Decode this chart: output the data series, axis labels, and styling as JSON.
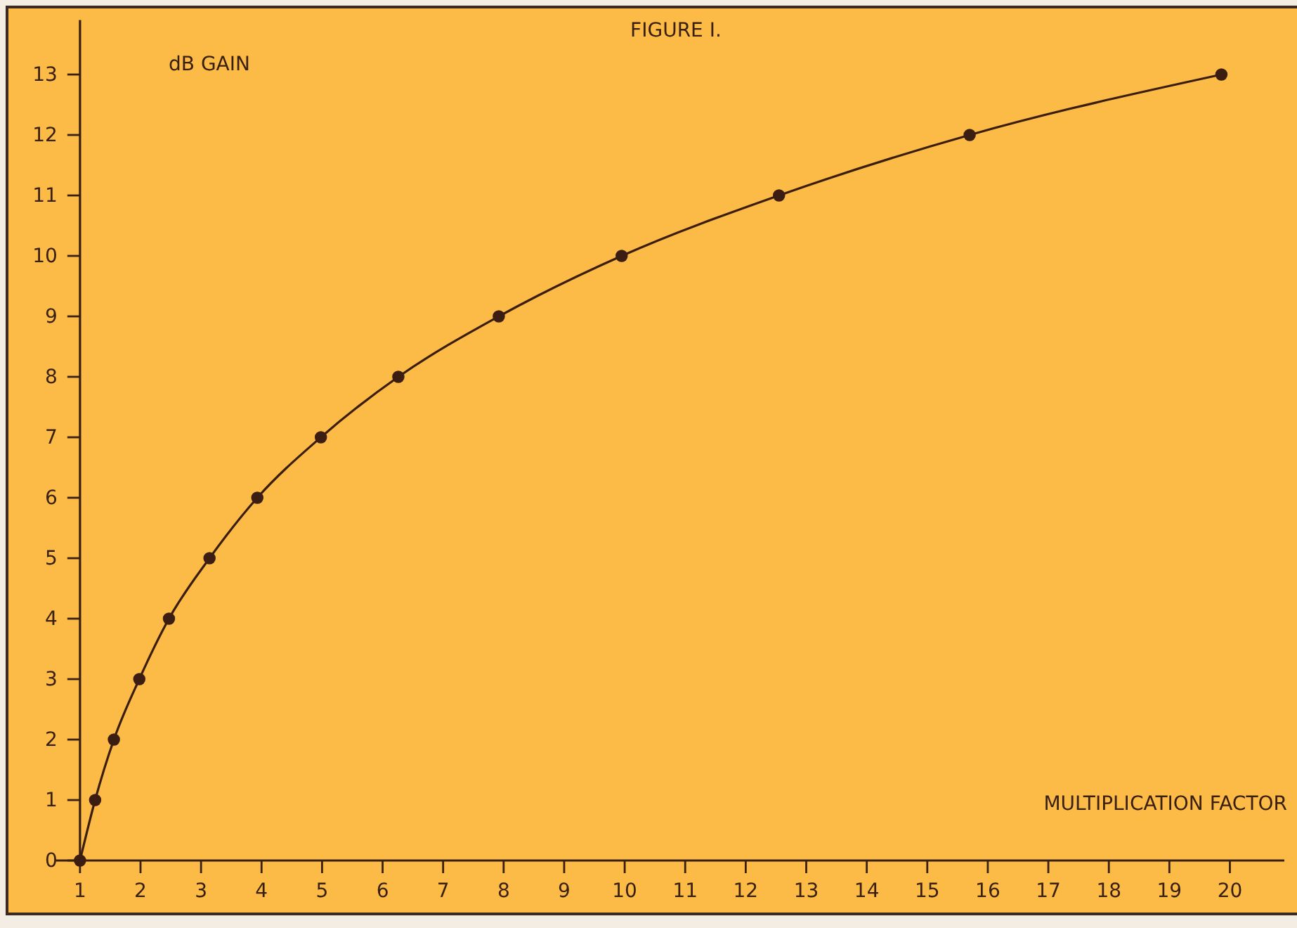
{
  "chart_data": {
    "type": "line",
    "title": "FIGURE I.",
    "xlabel": "MULTIPLICATION FACTOR",
    "ylabel": "dB GAIN",
    "x": [
      1,
      1.25,
      1.56,
      1.98,
      2.47,
      3.14,
      3.93,
      4.98,
      6.26,
      7.92,
      9.95,
      12.55,
      15.7,
      19.86
    ],
    "series": [
      {
        "color": "#3b1d12",
        "values": [
          0,
          1,
          2,
          3,
          4,
          5,
          6,
          7,
          8,
          9,
          10,
          11,
          12,
          13
        ]
      }
    ],
    "xlim": [
      0.6,
      20.9
    ],
    "ylim": [
      0,
      13.9
    ],
    "xticks": [
      1,
      2,
      3,
      4,
      5,
      6,
      7,
      8,
      9,
      10,
      11,
      12,
      13,
      14,
      15,
      16,
      17,
      18,
      19,
      20
    ],
    "yticks": [
      0,
      1,
      2,
      3,
      4,
      5,
      6,
      7,
      8,
      9,
      10,
      11,
      12,
      13
    ],
    "marker": "circle",
    "line_style": "solid"
  }
}
